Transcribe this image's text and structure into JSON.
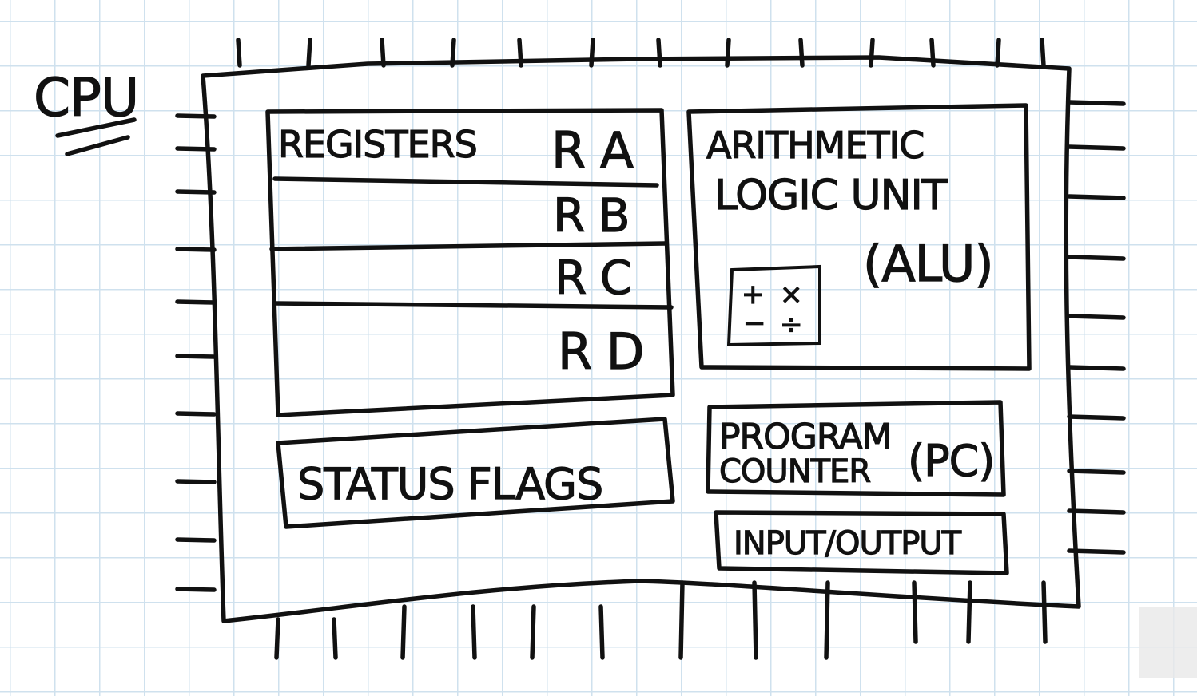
{
  "title": "CPU",
  "registers": {
    "label": "REGISTERS",
    "items": [
      "R A",
      "R B",
      "R C",
      "R D"
    ]
  },
  "alu": {
    "line1": "ARITHMETIC",
    "line2": "LOGIC UNIT",
    "abbr": "(ALU)",
    "calculator": {
      "plus": "+",
      "times": "×",
      "minus": "−",
      "divide": "÷"
    }
  },
  "status_flags": "STATUS FLAGS",
  "program_counter": {
    "line1": "PROGRAM",
    "line2": "COUNTER",
    "abbr": "(PC)"
  },
  "input_output": "INPUT/OUTPUT",
  "colors": {
    "ink": "#111111",
    "grid": "#cfe1ee",
    "paper": "#ffffff"
  }
}
